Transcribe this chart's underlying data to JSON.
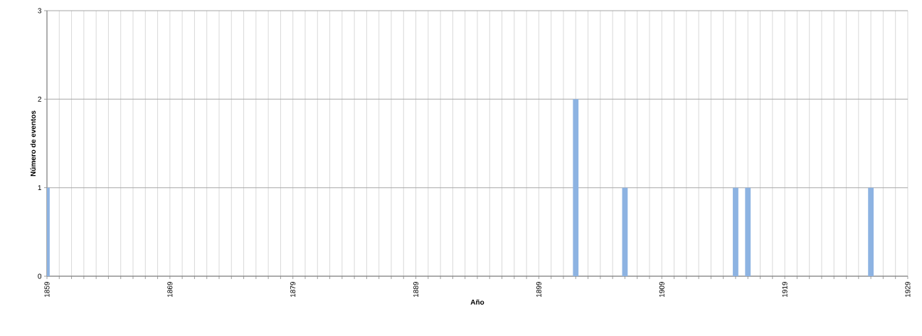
{
  "chart_data": {
    "type": "bar",
    "xlabel": "Año",
    "ylabel": "Número de eventos",
    "x": [
      1859,
      1902,
      1906,
      1915,
      1916,
      1926
    ],
    "values": [
      1,
      2,
      1,
      1,
      1,
      1
    ],
    "color": "#8db3e2",
    "xlim": [
      1859,
      1929
    ],
    "xticks": [
      1859,
      {
        "value": 1860,
        "label": null
      },
      {
        "value": 1861,
        "label": null
      },
      {
        "value": 1862,
        "label": null
      },
      {
        "value": 1863,
        "label": null
      },
      {
        "value": 1864,
        "label": null
      },
      {
        "value": 1865,
        "label": null
      },
      {
        "value": 1866,
        "label": null
      },
      {
        "value": 1867,
        "label": null
      },
      {
        "value": 1868,
        "label": null
      },
      1869,
      {
        "value": 1870,
        "label": null
      },
      {
        "value": 1871,
        "label": null
      },
      {
        "value": 1872,
        "label": null
      },
      {
        "value": 1873,
        "label": null
      },
      {
        "value": 1874,
        "label": null
      },
      {
        "value": 1875,
        "label": null
      },
      {
        "value": 1876,
        "label": null
      },
      {
        "value": 1877,
        "label": null
      },
      {
        "value": 1878,
        "label": null
      },
      1879,
      {
        "value": 1880,
        "label": null
      },
      {
        "value": 1881,
        "label": null
      },
      {
        "value": 1882,
        "label": null
      },
      {
        "value": 1883,
        "label": null
      },
      {
        "value": 1884,
        "label": null
      },
      {
        "value": 1885,
        "label": null
      },
      {
        "value": 1886,
        "label": null
      },
      {
        "value": 1887,
        "label": null
      },
      {
        "value": 1888,
        "label": null
      },
      1889,
      {
        "value": 1890,
        "label": null
      },
      {
        "value": 1891,
        "label": null
      },
      {
        "value": 1892,
        "label": null
      },
      {
        "value": 1893,
        "label": null
      },
      {
        "value": 1894,
        "label": null
      },
      {
        "value": 1895,
        "label": null
      },
      {
        "value": 1896,
        "label": null
      },
      {
        "value": 1897,
        "label": null
      },
      {
        "value": 1898,
        "label": null
      },
      1899,
      {
        "value": 1900,
        "label": null
      },
      {
        "value": 1901,
        "label": null
      },
      {
        "value": 1902,
        "label": null
      },
      {
        "value": 1903,
        "label": null
      },
      {
        "value": 1904,
        "label": null
      },
      {
        "value": 1905,
        "label": null
      },
      {
        "value": 1906,
        "label": null
      },
      {
        "value": 1907,
        "label": null
      },
      {
        "value": 1908,
        "label": null
      },
      1909,
      {
        "value": 1910,
        "label": null
      },
      {
        "value": 1911,
        "label": null
      },
      {
        "value": 1912,
        "label": null
      },
      {
        "value": 1913,
        "label": null
      },
      {
        "value": 1914,
        "label": null
      },
      {
        "value": 1915,
        "label": null
      },
      {
        "value": 1916,
        "label": null
      },
      {
        "value": 1917,
        "label": null
      },
      {
        "value": 1918,
        "label": null
      },
      1919,
      {
        "value": 1920,
        "label": null
      },
      {
        "value": 1921,
        "label": null
      },
      {
        "value": 1922,
        "label": null
      },
      {
        "value": 1923,
        "label": null
      },
      {
        "value": 1924,
        "label": null
      },
      {
        "value": 1925,
        "label": null
      },
      {
        "value": 1926,
        "label": null
      },
      {
        "value": 1927,
        "label": null
      },
      {
        "value": 1928,
        "label": null
      },
      1929
    ],
    "ylim": [
      0,
      3
    ],
    "yticks": [
      0,
      1,
      2,
      3
    ],
    "grid": true
  }
}
